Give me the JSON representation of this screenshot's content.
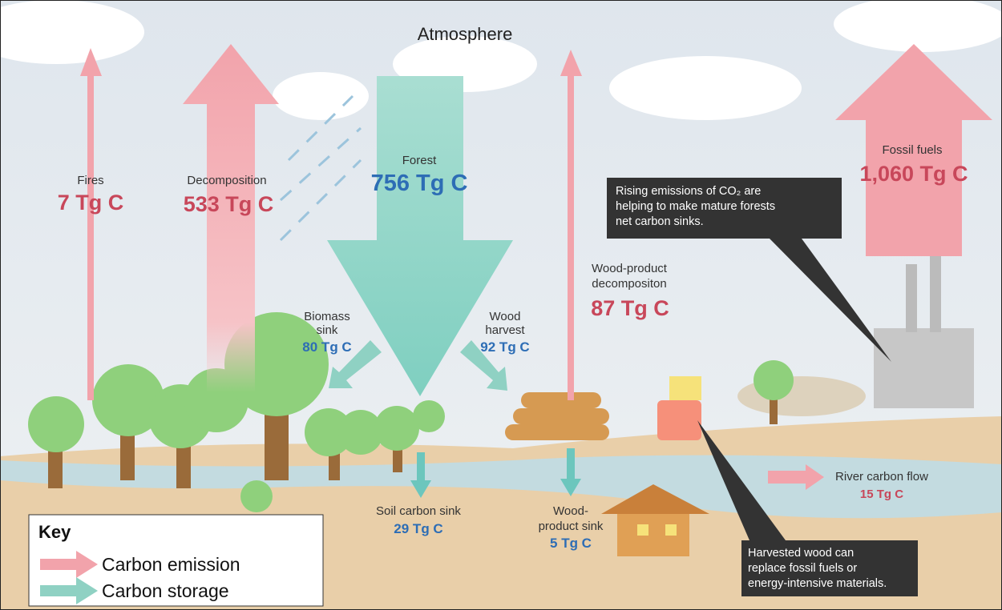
{
  "title": "Atmosphere",
  "flows": {
    "fires": {
      "label": "Fires",
      "amount": "7 Tg C"
    },
    "decomposition": {
      "label": "Decomposition",
      "amount": "533 Tg C"
    },
    "forest": {
      "label": "Forest",
      "amount": "756 Tg C"
    },
    "biomass_sink": {
      "label": [
        "Biomass",
        "sink"
      ],
      "amount": "80 Tg C"
    },
    "wood_harvest": {
      "label": [
        "Wood",
        "harvest"
      ],
      "amount": "92 Tg C"
    },
    "wood_product_decomposition": {
      "label": [
        "Wood-product",
        "decompositon"
      ],
      "amount": "87 Tg C"
    },
    "fossil_fuels": {
      "label": "Fossil fuels",
      "amount": "1,060 Tg C"
    },
    "soil_carbon_sink": {
      "label": "Soil carbon sink",
      "amount": "29 Tg C"
    },
    "wood_product_sink": {
      "label": [
        "Wood-",
        "product sink"
      ],
      "amount": "5 Tg C"
    },
    "river_carbon_flow": {
      "label": "River carbon flow",
      "amount": "15 Tg C"
    }
  },
  "callouts": [
    [
      "Rising emissions of CO₂ are",
      "helping to make mature forests",
      "net carbon sinks."
    ],
    [
      "Harvested wood can",
      "replace fossil fuels or",
      "energy-intensive materials."
    ]
  ],
  "key": {
    "title": "Key",
    "items": [
      "Carbon emission",
      "Carbon storage"
    ]
  }
}
